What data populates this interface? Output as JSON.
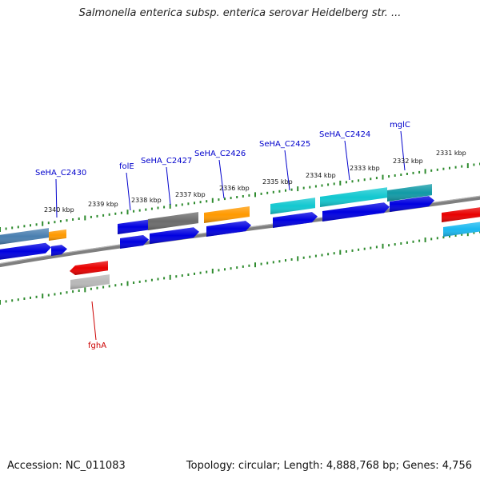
{
  "title": "Salmonella enterica subsp. enterica serovar Heidelberg str. ...",
  "footer": {
    "accession": "Accession: NC_011083",
    "summary": "Topology: circular; Length: 4,888,768 bp; Genes: 4,756"
  },
  "colors": {
    "backbone": "#7f7f7f",
    "tick": "#2e8b2e",
    "gene_label": "#0000cc",
    "reverse_label": "#cc0000",
    "blue": "#0000e0",
    "steel": "#4a7fb0",
    "orange": "#ff9900",
    "grey": "#6c6c6c",
    "cyan": "#12c8d0",
    "teal": "#119aa6",
    "red": "#e80000",
    "light_grey": "#b8b8b8",
    "sky": "#1ab8f0"
  },
  "scale": {
    "kbp": [
      2340,
      2339,
      2338,
      2337,
      2336,
      2335,
      2334,
      2333,
      2332,
      2331
    ],
    "labels": [
      "2340 kbp",
      "2339 kbp",
      "2338 kbp",
      "2337 kbp",
      "2336 kbp",
      "2335 kbp",
      "2334 kbp",
      "2333 kbp",
      "2332 kbp",
      "2331 kbp"
    ]
  },
  "gene_labels_forward": [
    "SeHA_C2430",
    "folE",
    "SeHA_C2427",
    "SeHA_C2426",
    "SeHA_C2425",
    "SeHA_C2424",
    "mglC"
  ],
  "gene_labels_reverse": [
    "fghA"
  ]
}
